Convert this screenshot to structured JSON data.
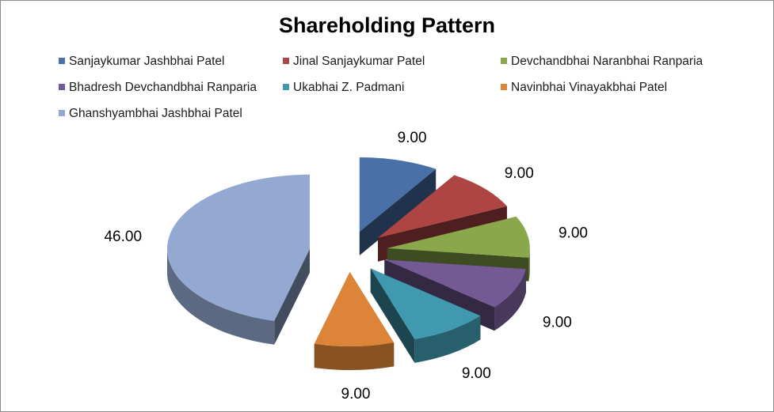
{
  "chart_data": {
    "type": "pie",
    "title": "Shareholding Pattern",
    "legend_position": "top",
    "series": [
      {
        "name": "Sanjaykumar Jashbhai Patel",
        "value": 9.0,
        "label": "9.00",
        "color": "#4a70a8"
      },
      {
        "name": "Jinal Sanjaykumar Patel",
        "value": 9.0,
        "label": "9.00",
        "color": "#ad4543"
      },
      {
        "name": "Devchandbhai Naranbhai Ranparia",
        "value": 9.0,
        "label": "9.00",
        "color": "#8aa84b"
      },
      {
        "name": "Bhadresh Devchandbhai Ranparia",
        "value": 9.0,
        "label": "9.00",
        "color": "#735a94"
      },
      {
        "name": "Ukabhai Z. Padmani",
        "value": 9.0,
        "label": "9.00",
        "color": "#4199b0"
      },
      {
        "name": "Navinbhai Vinayakbhai Patel",
        "value": 9.0,
        "label": "9.00",
        "color": "#dc8437"
      },
      {
        "name": "Ghanshyambhai Jashbhai Patel",
        "value": 46.0,
        "label": "46.00",
        "color": "#93a9d2"
      }
    ]
  }
}
